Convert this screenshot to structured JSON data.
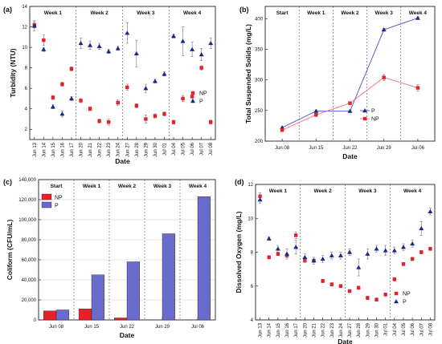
{
  "colors": {
    "NP": "#e8202a",
    "P": "#1a2a8c",
    "P_bar": "#6b6bcc"
  },
  "chart_data": [
    {
      "id": "a",
      "type": "scatter",
      "panel_label": "(a)",
      "xlabel": "Date",
      "ylabel": "Turbidity (NTU)",
      "ylim": [
        1,
        14
      ],
      "yticks": [
        2,
        4,
        6,
        8,
        10,
        12,
        14
      ],
      "categories": [
        "Jun 13",
        "Jun 14",
        "Jun 15",
        "Jun 16",
        "Jun 17",
        "Jun 20",
        "Jun 21",
        "Jun 22",
        "Jun 23",
        "Jun 24",
        "Jun 27",
        "Jun 28",
        "Jun 29",
        "Jun 30",
        "Jul 01",
        "Jul 04",
        "Jul 05",
        "Jul 06",
        "Jul 07",
        "Jul 08"
      ],
      "sections": [
        {
          "label": "Week 1",
          "start": 0,
          "end": 4
        },
        {
          "label": "Week 2",
          "start": 5,
          "end": 9
        },
        {
          "label": "Week 3",
          "start": 10,
          "end": 14
        },
        {
          "label": "Week 4",
          "start": 15,
          "end": 19
        }
      ],
      "legend": {
        "position": "right",
        "entries": [
          "NP",
          "P"
        ]
      },
      "series": [
        {
          "name": "NP",
          "marker": "square",
          "values": [
            12.2,
            10.7,
            5.1,
            6.4,
            7.9,
            4.8,
            4.0,
            2.8,
            2.7,
            4.6,
            6.1,
            4.3,
            3.0,
            3.3,
            3.5,
            2.7,
            5.0,
            5.2,
            8.0,
            2.7
          ],
          "errors": [
            0.3,
            0.5,
            0.2,
            0.2,
            0.2,
            0.2,
            0.2,
            0.2,
            0.3,
            0.3,
            0.3,
            0.2,
            0.4,
            0.2,
            0.2,
            0.2,
            0.3,
            0.4,
            0.2,
            0.2
          ]
        },
        {
          "name": "P",
          "marker": "triangle",
          "values": [
            12.1,
            9.8,
            4.2,
            3.5,
            5.0,
            10.4,
            10.2,
            10.1,
            9.6,
            9.9,
            11.4,
            9.4,
            6.0,
            6.7,
            7.4,
            11.1,
            10.6,
            9.8,
            9.3,
            10.4
          ],
          "errors": [
            0.5,
            0.2,
            0.2,
            0.3,
            0.2,
            0.5,
            0.4,
            0.3,
            0.2,
            0.2,
            1.0,
            1.3,
            0.4,
            0.2,
            0.2,
            0.2,
            1.4,
            0.7,
            0.6,
            0.5
          ]
        }
      ]
    },
    {
      "id": "b",
      "type": "line",
      "panel_label": "(b)",
      "xlabel": "Date",
      "ylabel": "Total Suspended Solids (mg/L)",
      "ylim": [
        200,
        420
      ],
      "yticks": [
        200,
        250,
        300,
        350,
        400
      ],
      "categories": [
        "Jun 08",
        "Jun 15",
        "Jun 22",
        "Jun 29",
        "Jul 06"
      ],
      "sections": [
        {
          "label": "Start",
          "start": 0,
          "end": 0
        },
        {
          "label": "Week 1",
          "start": 1,
          "end": 1
        },
        {
          "label": "Week 2",
          "start": 2,
          "end": 2
        },
        {
          "label": "Week 3",
          "start": 3,
          "end": 3
        },
        {
          "label": "Week 4",
          "start": 4,
          "end": 4
        }
      ],
      "legend": {
        "position": "left",
        "entries": [
          "P",
          "NP"
        ]
      },
      "series": [
        {
          "name": "P",
          "marker": "triangle",
          "values": [
            222,
            249,
            249,
            382,
            401
          ],
          "errors": [
            2,
            2,
            2,
            2,
            2
          ]
        },
        {
          "name": "NP",
          "marker": "square",
          "values": [
            218,
            243,
            262,
            304,
            287
          ],
          "errors": [
            2,
            3,
            2,
            5,
            5
          ]
        }
      ]
    },
    {
      "id": "c",
      "type": "bar",
      "panel_label": "(c)",
      "xlabel": "Date",
      "ylabel": "Coliform (CFU/mL)",
      "ylim": [
        0,
        140000
      ],
      "yticks": [
        0,
        20000,
        40000,
        60000,
        80000,
        100000,
        120000,
        140000
      ],
      "ytick_labels": [
        "0",
        "20,000",
        "40,000",
        "60,000",
        "80,000",
        "100,000",
        "120,000",
        "140,000"
      ],
      "grid": true,
      "categories": [
        "Jun 08",
        "Jun 15",
        "Jun 22",
        "Jun 29",
        "Jul 06"
      ],
      "sections": [
        {
          "label": "Start",
          "start": 0,
          "end": 0
        },
        {
          "label": "Week 1",
          "start": 1,
          "end": 1
        },
        {
          "label": "Week 2",
          "start": 2,
          "end": 2
        },
        {
          "label": "Week 3",
          "start": 3,
          "end": 3
        },
        {
          "label": "Week 4",
          "start": 4,
          "end": 4
        }
      ],
      "legend": {
        "position": "top-left",
        "entries": [
          "NP",
          "P"
        ]
      },
      "series": [
        {
          "name": "NP",
          "values": [
            9000,
            11000,
            2000,
            0,
            0
          ]
        },
        {
          "name": "P",
          "values": [
            10000,
            45000,
            58000,
            86000,
            123000
          ]
        }
      ]
    },
    {
      "id": "d",
      "type": "scatter",
      "panel_label": "(d)",
      "xlabel": "Date",
      "ylabel": "Dissolved Oxygen (mg/L)",
      "ylim": [
        4,
        12
      ],
      "yticks": [
        4,
        6,
        8,
        10,
        12
      ],
      "categories": [
        "Jun 13",
        "Jun 14",
        "Jun 15",
        "Jun 16",
        "Jun 17",
        "Jun 20",
        "Jun 21",
        "Jun 22",
        "Jun 23",
        "Jun 24",
        "Jun 27",
        "Jun 28",
        "Jun 29",
        "Jun 30",
        "Jul 01",
        "Jul 04",
        "Jul 05",
        "Jul 06",
        "Jul 07",
        "Jul 08"
      ],
      "sections": [
        {
          "label": "Week 1",
          "start": 0,
          "end": 4
        },
        {
          "label": "Week 2",
          "start": 5,
          "end": 9
        },
        {
          "label": "Week 3",
          "start": 10,
          "end": 14
        },
        {
          "label": "Week 4",
          "start": 15,
          "end": 19
        }
      ],
      "legend": {
        "position": "bottom-right",
        "entries": [
          "NP",
          "P"
        ]
      },
      "series": [
        {
          "name": "NP",
          "marker": "square",
          "values": [
            11.3,
            7.7,
            7.9,
            7.8,
            9.0,
            7.5,
            7.5,
            6.3,
            6.1,
            6.0,
            5.7,
            5.9,
            5.3,
            5.2,
            5.5,
            6.4,
            7.3,
            7.6,
            8.0,
            8.2
          ],
          "errors": [
            0.2,
            0.1,
            0.1,
            0.1,
            0.2,
            0.1,
            0.1,
            0.1,
            0.1,
            0.1,
            0.1,
            0.1,
            0.1,
            0.1,
            0.1,
            0.1,
            0.1,
            0.1,
            0.1,
            0.1
          ]
        },
        {
          "name": "P",
          "marker": "triangle",
          "values": [
            11.1,
            8.8,
            8.2,
            7.9,
            8.3,
            7.7,
            7.5,
            7.6,
            7.8,
            7.8,
            8.0,
            7.1,
            7.9,
            8.2,
            8.1,
            8.1,
            8.3,
            8.5,
            9.4,
            10.4
          ],
          "errors": [
            0.2,
            0.1,
            0.2,
            0.3,
            0.4,
            0.2,
            0.2,
            0.2,
            0.2,
            0.2,
            0.2,
            0.5,
            0.3,
            0.2,
            0.3,
            0.2,
            0.2,
            0.2,
            0.4,
            0.2
          ]
        }
      ]
    }
  ]
}
